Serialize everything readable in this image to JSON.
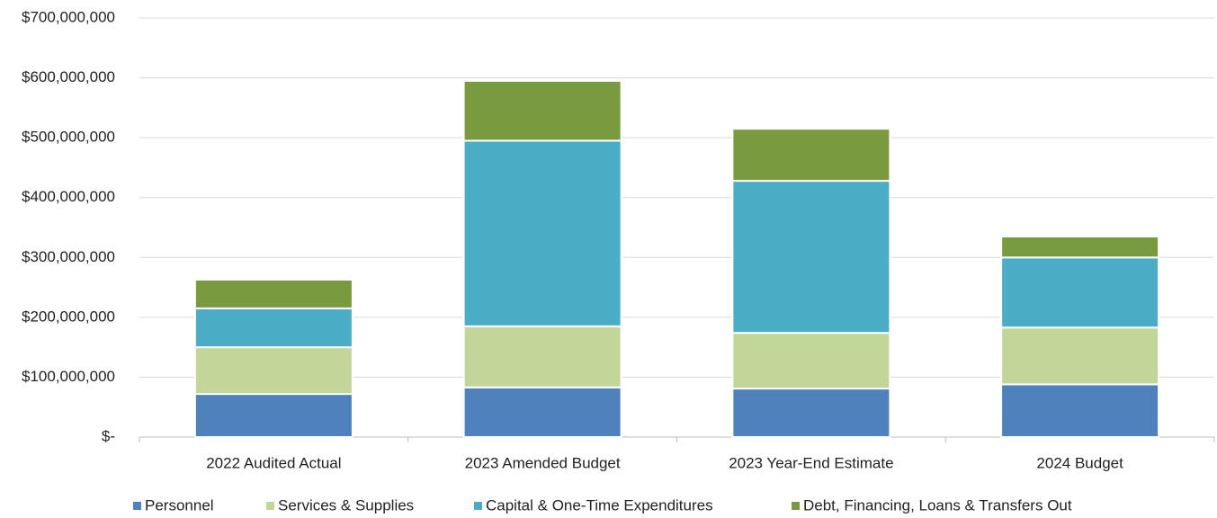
{
  "chart_data": {
    "type": "stacked_bar",
    "categories": [
      "2022 Audited Actual",
      "2023 Amended Budget",
      "2023 Year-End Estimate",
      "2024 Budget"
    ],
    "series": [
      {
        "name": "Personnel",
        "color": "#4f81bd",
        "values": [
          72000000,
          83000000,
          81000000,
          88000000
        ]
      },
      {
        "name": "Services & Supplies",
        "color": "#c2d69a",
        "values": [
          78000000,
          102000000,
          93000000,
          95000000
        ]
      },
      {
        "name": "Capital & One-Time Expenditures",
        "color": "#4bacc6",
        "values": [
          65000000,
          310000000,
          254000000,
          117000000
        ]
      },
      {
        "name": "Debt, Financing, Loans & Transfers Out",
        "color": "#799a3e",
        "values": [
          48000000,
          100000000,
          87000000,
          35000000
        ]
      }
    ],
    "ylim": [
      0,
      700000000
    ],
    "yticks": [
      {
        "value": 0,
        "label": "$-"
      },
      {
        "value": 100000000,
        "label": "$100,000,000"
      },
      {
        "value": 200000000,
        "label": "$200,000,000"
      },
      {
        "value": 300000000,
        "label": "$300,000,000"
      },
      {
        "value": 400000000,
        "label": "$400,000,000"
      },
      {
        "value": 500000000,
        "label": "$500,000,000"
      },
      {
        "value": 600000000,
        "label": "$600,000,000"
      },
      {
        "value": 700000000,
        "label": "$700,000,000"
      }
    ],
    "grid": true,
    "legend": "bottom"
  }
}
